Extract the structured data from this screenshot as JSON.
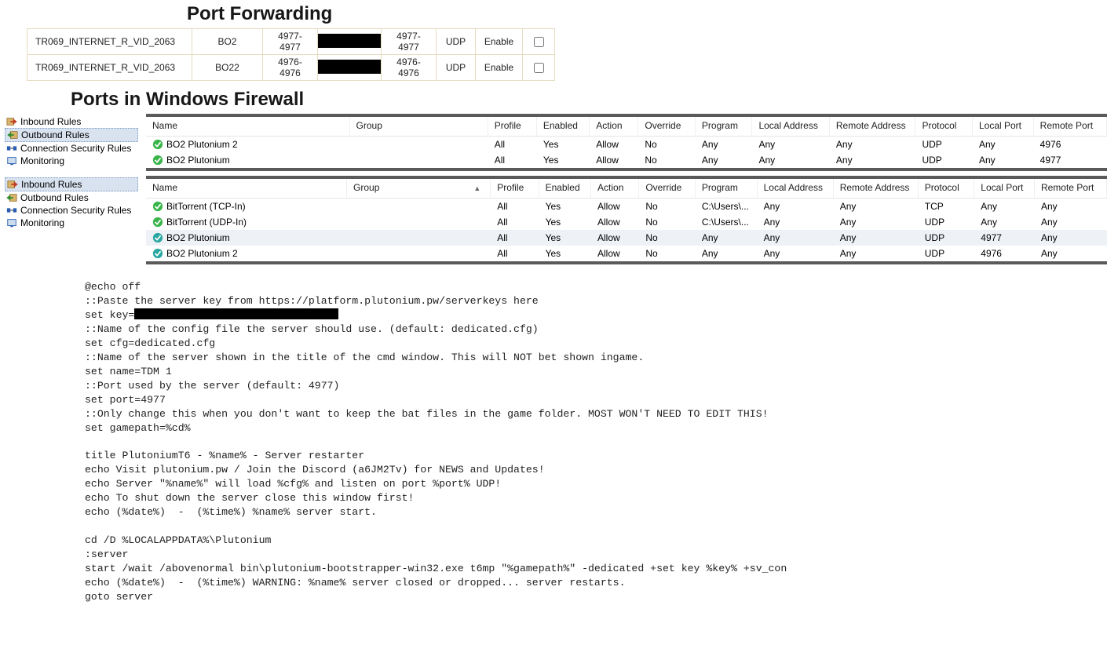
{
  "port_forwarding": {
    "title": "Port Forwarding",
    "rows": [
      {
        "iface": "TR069_INTERNET_R_VID_2063",
        "name": "BO2",
        "ext": "4977-4977",
        "int": "4977-4977",
        "proto": "UDP",
        "state": "Enable"
      },
      {
        "iface": "TR069_INTERNET_R_VID_2063",
        "name": "BO22",
        "ext": "4976-4976",
        "int": "4976-4976",
        "proto": "UDP",
        "state": "Enable"
      }
    ]
  },
  "firewall_title": "Ports in Windows Firewall",
  "nav_labels": {
    "inbound": "Inbound Rules",
    "outbound": "Outbound Rules",
    "csr": "Connection Security Rules",
    "monitoring": "Monitoring"
  },
  "grid_headers": {
    "name": "Name",
    "group": "Group",
    "profile": "Profile",
    "enabled": "Enabled",
    "action": "Action",
    "override": "Override",
    "program": "Program",
    "local_addr": "Local Address",
    "remote_addr": "Remote Address",
    "protocol": "Protocol",
    "local_port": "Local Port",
    "remote_port": "Remote Port"
  },
  "outbound_rows": [
    {
      "icon": "green",
      "name": "BO2 Plutonium 2",
      "group": "",
      "profile": "All",
      "enabled": "Yes",
      "action": "Allow",
      "override": "No",
      "program": "Any",
      "local_addr": "Any",
      "remote_addr": "Any",
      "protocol": "UDP",
      "local_port": "Any",
      "remote_port": "4976"
    },
    {
      "icon": "green",
      "name": "BO2 Plutonium",
      "group": "",
      "profile": "All",
      "enabled": "Yes",
      "action": "Allow",
      "override": "No",
      "program": "Any",
      "local_addr": "Any",
      "remote_addr": "Any",
      "protocol": "UDP",
      "local_port": "Any",
      "remote_port": "4977"
    }
  ],
  "inbound_rows": [
    {
      "icon": "green",
      "name": "BitTorrent (TCP-In)",
      "group": "",
      "profile": "All",
      "enabled": "Yes",
      "action": "Allow",
      "override": "No",
      "program": "C:\\Users\\...",
      "local_addr": "Any",
      "remote_addr": "Any",
      "protocol": "TCP",
      "local_port": "Any",
      "remote_port": "Any",
      "sel": false
    },
    {
      "icon": "green",
      "name": "BitTorrent (UDP-In)",
      "group": "",
      "profile": "All",
      "enabled": "Yes",
      "action": "Allow",
      "override": "No",
      "program": "C:\\Users\\...",
      "local_addr": "Any",
      "remote_addr": "Any",
      "protocol": "UDP",
      "local_port": "Any",
      "remote_port": "Any",
      "sel": false
    },
    {
      "icon": "teal",
      "name": "BO2 Plutonium",
      "group": "",
      "profile": "All",
      "enabled": "Yes",
      "action": "Allow",
      "override": "No",
      "program": "Any",
      "local_addr": "Any",
      "remote_addr": "Any",
      "protocol": "UDP",
      "local_port": "4977",
      "remote_port": "Any",
      "sel": true
    },
    {
      "icon": "teal",
      "name": "BO2 Plutonium 2",
      "group": "",
      "profile": "All",
      "enabled": "Yes",
      "action": "Allow",
      "override": "No",
      "program": "Any",
      "local_addr": "Any",
      "remote_addr": "Any",
      "protocol": "UDP",
      "local_port": "4976",
      "remote_port": "Any",
      "sel": false
    }
  ],
  "col_widths": {
    "name": 250,
    "group": 170,
    "profile": 60,
    "enabled": 65,
    "action": 60,
    "override": 70,
    "program": 70,
    "local_addr": 95,
    "remote_addr": 105,
    "protocol": 70,
    "local_port": 75,
    "remote_port": 90
  },
  "batch": {
    "lines": [
      "@echo off",
      "::Paste the server key from https://platform.plutonium.pw/serverkeys here",
      "set key=",
      "::Name of the config file the server should use. (default: dedicated.cfg)",
      "set cfg=dedicated.cfg",
      "::Name of the server shown in the title of the cmd window. This will NOT bet shown ingame.",
      "set name=TDM 1",
      "::Port used by the server (default: 4977)",
      "set port=4977",
      "::Only change this when you don't want to keep the bat files in the game folder. MOST WON'T NEED TO EDIT THIS!",
      "set gamepath=%cd%",
      "",
      "title PlutoniumT6 - %name% - Server restarter",
      "echo Visit plutonium.pw / Join the Discord (a6JM2Tv) for NEWS and Updates!",
      "echo Server \"%name%\" will load %cfg% and listen on port %port% UDP!",
      "echo To shut down the server close this window first!",
      "echo (%date%)  -  (%time%) %name% server start.",
      "",
      "cd /D %LOCALAPPDATA%\\Plutonium",
      ":server",
      "start /wait /abovenormal bin\\plutonium-bootstrapper-win32.exe t6mp \"%gamepath%\" -dedicated +set key %key% +sv_con",
      "echo (%date%)  -  (%time%) WARNING: %name% server closed or dropped... server restarts.",
      "goto server"
    ],
    "redact_line_index": 2
  },
  "icons": {
    "inbound_color": "#c23b22",
    "outbound_color": "#2e8b2e",
    "csr_color": "#2a5db0",
    "monitor_color": "#2a5db0",
    "green_check": "#39b54a",
    "teal_check": "#2aa7a0"
  }
}
